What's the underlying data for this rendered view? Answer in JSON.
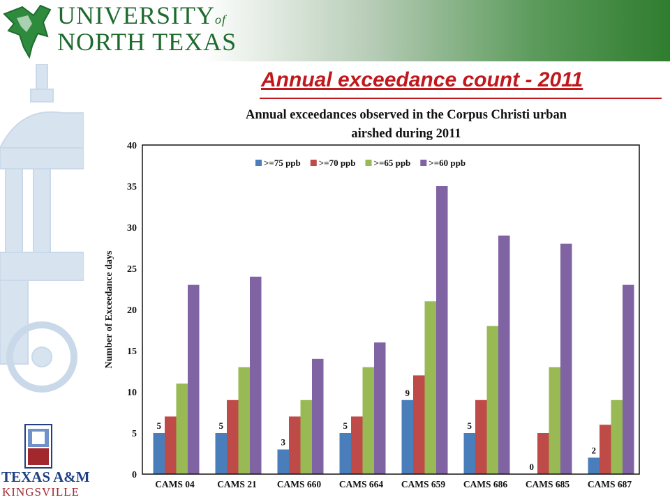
{
  "header": {
    "university_line1": "UNIVERSITY",
    "university_of": "of",
    "university_line2": "NORTH TEXAS"
  },
  "slide_title": "Annual exceedance count - 2011",
  "footer_logo": {
    "line1": "TEXAS A&M",
    "line2": "KINGSVILLE"
  },
  "colors": {
    "title_red": "#c0181c",
    "unt_green": "#1e6b2e",
    "series": [
      "#4a7ebb",
      "#be4b48",
      "#98b954",
      "#7f63a3"
    ]
  },
  "chart_data": {
    "type": "bar",
    "title_line1": "Annual exceedances observed in the Corpus Christi urban",
    "title_line2": "airshed during 2011",
    "ylabel": "Number of Exceedance days",
    "xlabel": "",
    "ylim": [
      0,
      40
    ],
    "yticks": [
      0,
      5,
      10,
      15,
      20,
      25,
      30,
      35,
      40
    ],
    "legend_position": "top-center",
    "categories": [
      "CAMS 04",
      "CAMS 21",
      "CAMS 660",
      "CAMS 664",
      "CAMS 659",
      "CAMS 686",
      "CAMS 685",
      "CAMS 687"
    ],
    "series": [
      {
        "name": ">=75 ppb",
        "values": [
          5,
          5,
          3,
          5,
          9,
          5,
          0,
          2
        ],
        "labels": [
          "5",
          "5",
          "3",
          "5",
          "9",
          "5",
          "0",
          "2"
        ]
      },
      {
        "name": ">=70 ppb",
        "values": [
          7,
          9,
          7,
          7,
          12,
          9,
          5,
          6
        ]
      },
      {
        "name": ">=65 ppb",
        "values": [
          11,
          13,
          9,
          13,
          21,
          18,
          13,
          9
        ]
      },
      {
        "name": ">=60 ppb",
        "values": [
          23,
          24,
          14,
          16,
          35,
          29,
          28,
          23
        ]
      }
    ]
  }
}
